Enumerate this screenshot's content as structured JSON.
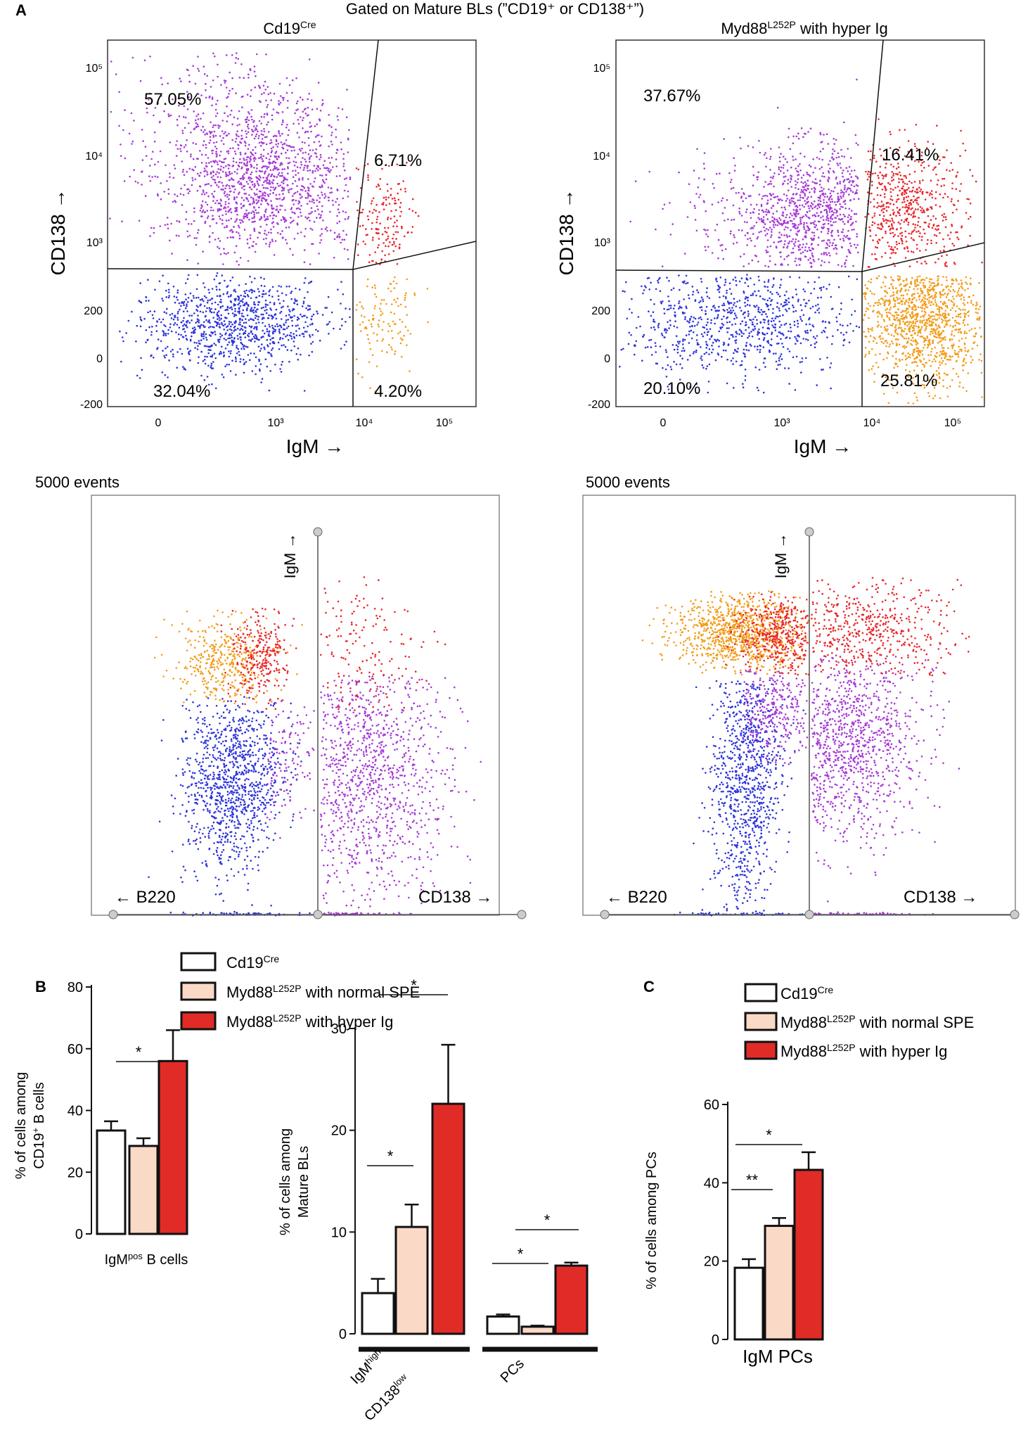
{
  "figure": {
    "header_title": "Gated on Mature BLs (”CD19⁺ or CD138⁺”)",
    "panel_labels": {
      "a": "A",
      "b": "B",
      "c": "C"
    },
    "events_label": "5000 events"
  },
  "colors": {
    "plasma": "#a63ad6",
    "igm_high": "#e8262b",
    "double_neg": "#2d34d9",
    "igm_only": "#f39c1a",
    "cre_fill": "#ffffff",
    "normal_spe_fill": "#fbd9c7",
    "hyper_fill": "#e02b27"
  },
  "legend": {
    "cre": {
      "main": "Cd19",
      "sup": "Cre",
      "rest": ""
    },
    "normal": {
      "main": "Myd88",
      "sup": "L252P",
      "rest": " with normal SPE"
    },
    "hyper": {
      "main": "Myd88",
      "sup": "L252P",
      "rest": " with hyper Ig"
    }
  },
  "scatter_panels": [
    {
      "title_main": "Cd19",
      "title_sup": "Cre",
      "title_rest": "",
      "ylabel": "CD138",
      "xlabel": "IgM",
      "y_ticks": [
        "10⁵",
        "10⁴",
        "10³",
        "200",
        "0",
        "-200"
      ],
      "x_ticks": [
        "0",
        "10³",
        "10⁴",
        "10⁵"
      ],
      "quadrants": {
        "upper_left": "57.05%",
        "upper_right": "6.71%",
        "lower_left": "32.04%",
        "lower_right": "4.20%"
      }
    },
    {
      "title_main": "Myd88",
      "title_sup": "L252P",
      "title_rest": " with hyper Ig",
      "ylabel": "CD138",
      "xlabel": "IgM",
      "y_ticks": [
        "10⁵",
        "10⁴",
        "10³",
        "200",
        "0",
        "-200"
      ],
      "x_ticks": [
        "0",
        "10³",
        "10⁴",
        "10⁵"
      ],
      "quadrants": {
        "upper_left": "37.67%",
        "upper_right": "16.41%",
        "lower_left": "20.10%",
        "lower_right": "25.81%"
      }
    }
  ],
  "radial_panels": [
    {
      "axis_top": "IgM",
      "axis_left": "B220",
      "axis_right": "CD138"
    },
    {
      "axis_top": "IgM",
      "axis_left": "B220",
      "axis_right": "CD138"
    }
  ],
  "chart_data": [
    {
      "id": "B1",
      "type": "bar",
      "categories": [
        "IgMᵖᵒˢ B cells"
      ],
      "x_label_main": "IgM",
      "x_label_sup": "pos",
      "x_label_rest": " B cells",
      "series": [
        {
          "name": "Cd19Cre",
          "values": [
            33.5
          ],
          "errors": [
            3
          ]
        },
        {
          "name": "Myd88L252P with normal SPE",
          "values": [
            28.5
          ],
          "errors": [
            2.5
          ]
        },
        {
          "name": "Myd88L252P with hyper Ig",
          "values": [
            56
          ],
          "errors": [
            10
          ]
        }
      ],
      "ylabel_line1": "% of cells among",
      "ylabel_line2_main": "CD19",
      "ylabel_line2_sup": "+",
      "ylabel_line2_rest": " B cells",
      "ylim": [
        0,
        80
      ],
      "yticks": [
        "0",
        "20",
        "40",
        "60",
        "80"
      ],
      "significance": [
        "*"
      ]
    },
    {
      "id": "B2",
      "type": "bar",
      "categories": [
        "IgMhigh CD138low",
        "PCs"
      ],
      "category_labels": {
        "g1_line1_main": "IgM",
        "g1_line1_sup": "high",
        "g1_line2_main": "CD138",
        "g1_line2_sup": "low",
        "g2": "PCs"
      },
      "series": [
        {
          "name": "Cd19Cre",
          "values": [
            4.0,
            1.7
          ],
          "errors": [
            1.4,
            0.2
          ]
        },
        {
          "name": "Myd88L252P with normal SPE",
          "values": [
            10.5,
            0.7
          ],
          "errors": [
            2.2,
            0.1
          ]
        },
        {
          "name": "Myd88L252P with hyper Ig",
          "values": [
            22.6,
            6.7
          ],
          "errors": [
            5.8,
            0.3
          ]
        }
      ],
      "ylabel_line1": "% of cells among",
      "ylabel_line2": "Mature BLs",
      "ylim": [
        0,
        30
      ],
      "yticks": [
        "0",
        "10",
        "20",
        "30"
      ],
      "significance": [
        "*",
        "*",
        "*",
        "*"
      ]
    },
    {
      "id": "C",
      "type": "bar",
      "categories": [
        "IgM PCs"
      ],
      "x_label": "IgM PCs",
      "series": [
        {
          "name": "Cd19Cre",
          "values": [
            18.3
          ],
          "errors": [
            2.2
          ]
        },
        {
          "name": "Myd88L252P with normal SPE",
          "values": [
            29
          ],
          "errors": [
            2
          ]
        },
        {
          "name": "Myd88L252P with hyper Ig",
          "values": [
            43.3
          ],
          "errors": [
            4.5
          ]
        }
      ],
      "ylabel": "% of cells among PCs",
      "ylim": [
        0,
        60
      ],
      "yticks": [
        "0",
        "20",
        "40",
        "60"
      ],
      "significance": [
        "*",
        "**"
      ]
    }
  ]
}
